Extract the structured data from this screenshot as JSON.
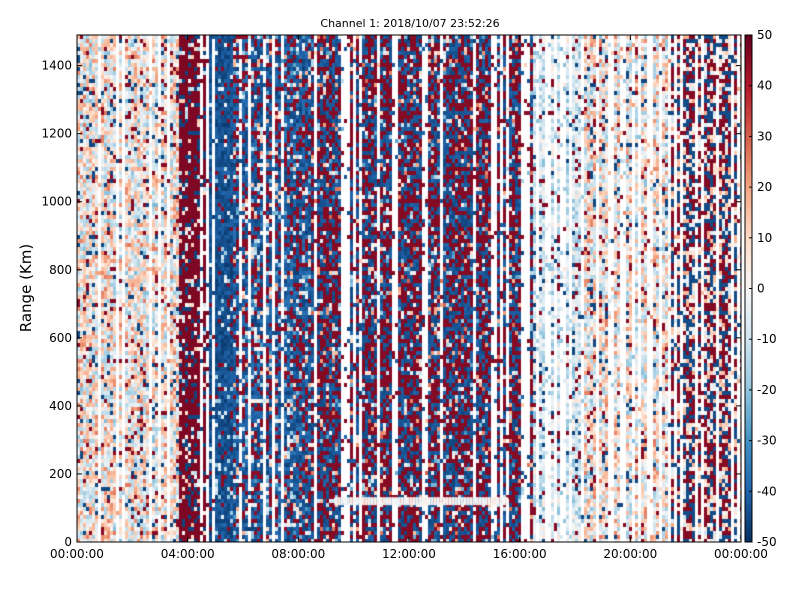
{
  "chart_data": {
    "type": "heatmap",
    "title": "Channel 1: 2018/10/07 23:52:26",
    "xlabel": "",
    "ylabel": "Range (Km)",
    "x_ticks": [
      "00:00:00",
      "04:00:00",
      "08:00:00",
      "12:00:00",
      "16:00:00",
      "20:00:00",
      "00:00:00"
    ],
    "xlim_hours": [
      0,
      24
    ],
    "y_ticks": [
      0,
      200,
      400,
      600,
      800,
      1000,
      1200,
      1400
    ],
    "ylim": [
      0,
      1490
    ],
    "colorbar": {
      "colormap": "RdBu_r",
      "min": -50,
      "max": 50,
      "ticks": [
        50,
        40,
        30,
        20,
        10,
        0,
        -10,
        -20,
        -30,
        -40,
        -50
      ]
    },
    "pattern_segments_hours": [
      {
        "from": 0.0,
        "to": 3.7,
        "regime": "light-mixed"
      },
      {
        "from": 3.7,
        "to": 4.8,
        "regime": "strong-positive"
      },
      {
        "from": 4.8,
        "to": 5.6,
        "regime": "strong-negative"
      },
      {
        "from": 5.6,
        "to": 8.5,
        "regime": "negative-dominant"
      },
      {
        "from": 8.5,
        "to": 16.5,
        "regime": "strong-mixed"
      },
      {
        "from": 16.5,
        "to": 18.3,
        "regime": "light-negative"
      },
      {
        "from": 18.3,
        "to": 21.5,
        "regime": "light-mixed"
      },
      {
        "from": 21.5,
        "to": 24.0,
        "regime": "strong-mixed-sparse"
      }
    ],
    "bright_band": {
      "from_hours": 9.3,
      "to_hours": 15.5,
      "range_km": 120
    }
  }
}
